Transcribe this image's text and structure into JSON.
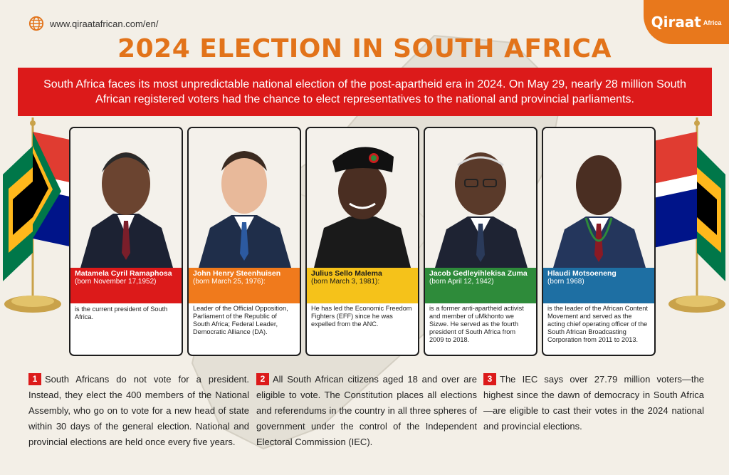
{
  "site_url": "www.qiraatafrican.com/en/",
  "logo": {
    "main": "Qiraat",
    "sub": "Africa"
  },
  "title": "2024 ELECTION IN SOUTH AFRICA",
  "intro": "South Africa faces its most unpredictable national election of the post-apartheid era in 2024. On May 29, nearly 28 million South African registered voters had the chance to elect representatives to the national and provincial parliaments.",
  "candidates": [
    {
      "name": "Matamela Cyril Ramaphosa",
      "born": "(born November 17,1952)",
      "bio": "is the current president of South Africa.",
      "color": "#dc1a1a"
    },
    {
      "name": "John Henry Steenhuisen",
      "born": "(born March 25, 1976):",
      "bio": "Leader of the Official Opposition, Parliament of the Republic of South Africa; Federal Leader, Democratic Alliance (DA).",
      "color": "#f07a1c"
    },
    {
      "name": "Julius Sello Malema",
      "born": "(born March 3, 1981):",
      "bio": "He has led the Economic Freedom Fighters (EFF) since he was expelled from the ANC.",
      "color": "#f5c21a"
    },
    {
      "name": "Jacob Gedleyihlekisa Zuma",
      "born": "(born April 12, 1942)",
      "bio": "is a former anti-apartheid activist and member of uMkhonto we Sizwe. He served as the fourth president of South Africa from 2009 to 2018.",
      "color": "#2e8b3a"
    },
    {
      "name": "Hlaudi Motsoeneng",
      "born": "(born 1968)",
      "bio": "is the leader of the African Content Movement and served as the acting chief operating officer of the South African Broadcasting Corporation from 2011 to 2013.",
      "color": "#1e6fa3"
    }
  ],
  "facts": [
    {
      "number": "1",
      "text": "South Africans do not vote for a president. Instead, they elect the 400 members of the National Assembly, who go on to vote for a new head of state within 30 days of the general election. National and provincial elections are held once every five years."
    },
    {
      "number": "2",
      "text": "All South African citizens aged 18 and over are eligible to vote. The Constitution places all elections and referendums in the country in all three spheres of government under the control of the Independent Electoral Commission (IEC)."
    },
    {
      "number": "3",
      "text": "The IEC says over 27.79 million voters—the highest since the dawn of democracy in South Africa—are eligible to cast their votes in the 2024 national and provincial elections."
    }
  ],
  "colors": {
    "accent": "#e2731a",
    "banner": "#dc1a1a"
  }
}
